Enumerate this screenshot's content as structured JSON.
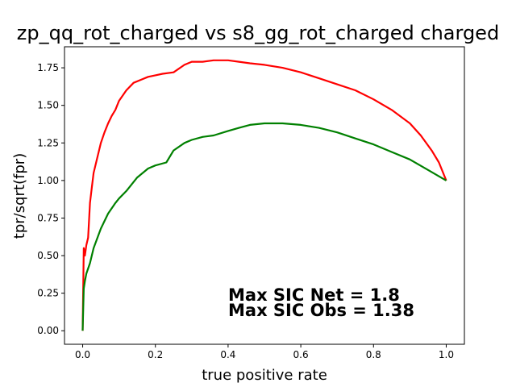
{
  "chart_data": {
    "type": "line",
    "title": "zp_qq_rot_charged vs s8_gg_rot_charged charged",
    "xlabel": "true positive rate",
    "ylabel": "tpr/sqrt(fpr)",
    "xlim": [
      -0.05,
      1.05
    ],
    "ylim": [
      -0.09,
      1.89
    ],
    "x_ticks": [
      "0.0",
      "0.2",
      "0.4",
      "0.6",
      "0.8",
      "1.0"
    ],
    "y_ticks": [
      "0.00",
      "0.25",
      "0.50",
      "0.75",
      "1.00",
      "1.25",
      "1.50",
      "1.75"
    ],
    "grid": false,
    "series": [
      {
        "color": "#ff0000",
        "x": [
          0.0,
          0.003,
          0.006,
          0.01,
          0.015,
          0.02,
          0.025,
          0.03,
          0.04,
          0.05,
          0.06,
          0.07,
          0.08,
          0.09,
          0.1,
          0.12,
          0.14,
          0.16,
          0.18,
          0.2,
          0.22,
          0.25,
          0.28,
          0.3,
          0.33,
          0.36,
          0.4,
          0.43,
          0.46,
          0.5,
          0.55,
          0.6,
          0.65,
          0.7,
          0.75,
          0.8,
          0.85,
          0.9,
          0.93,
          0.96,
          0.98,
          1.0
        ],
        "y": [
          0.0,
          0.55,
          0.5,
          0.57,
          0.62,
          0.85,
          0.95,
          1.05,
          1.15,
          1.25,
          1.32,
          1.38,
          1.43,
          1.47,
          1.53,
          1.6,
          1.65,
          1.67,
          1.69,
          1.7,
          1.71,
          1.72,
          1.77,
          1.79,
          1.79,
          1.8,
          1.8,
          1.79,
          1.78,
          1.77,
          1.75,
          1.72,
          1.68,
          1.64,
          1.6,
          1.54,
          1.47,
          1.38,
          1.3,
          1.2,
          1.12,
          1.0
        ]
      },
      {
        "color": "#008000",
        "x": [
          0.0,
          0.003,
          0.006,
          0.01,
          0.02,
          0.03,
          0.05,
          0.07,
          0.09,
          0.1,
          0.12,
          0.15,
          0.18,
          0.2,
          0.23,
          0.25,
          0.28,
          0.3,
          0.33,
          0.36,
          0.4,
          0.43,
          0.46,
          0.5,
          0.55,
          0.6,
          0.65,
          0.7,
          0.75,
          0.8,
          0.85,
          0.9,
          0.95,
          1.0
        ],
        "y": [
          0.0,
          0.28,
          0.33,
          0.38,
          0.45,
          0.55,
          0.68,
          0.78,
          0.85,
          0.88,
          0.93,
          1.02,
          1.08,
          1.1,
          1.12,
          1.2,
          1.25,
          1.27,
          1.29,
          1.3,
          1.33,
          1.35,
          1.37,
          1.38,
          1.38,
          1.37,
          1.35,
          1.32,
          1.28,
          1.24,
          1.19,
          1.14,
          1.07,
          1.0
        ]
      }
    ],
    "annotations": [
      "Max SIC Net = 1.8",
      "Max SIC Obs = 1.38"
    ]
  }
}
